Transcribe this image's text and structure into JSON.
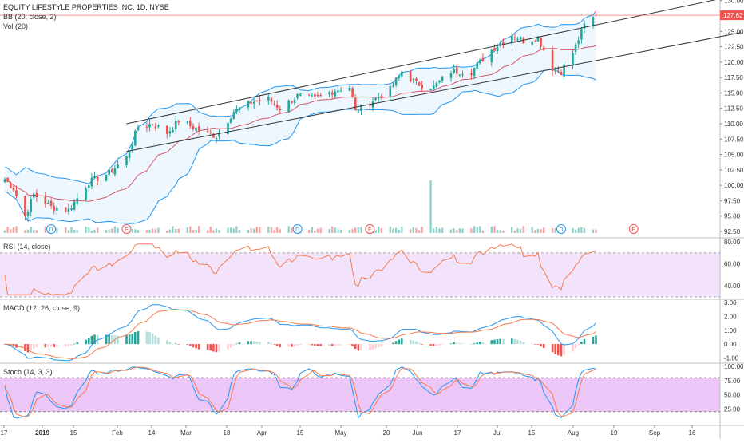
{
  "chart_data": {
    "type": "candlestick",
    "title": "EQUITY LIFESTYLE PROPERTIES INC, 1D, NYSE",
    "studies": {
      "bb": "BB (20, close, 2)",
      "vol": "Vol (20)",
      "rsi": "RSI (14, close)",
      "macd": "MACD (12, 26, close, 9)",
      "stoch": "Stoch (14, 3, 3)"
    },
    "last_price": "127.62",
    "price_ticks": [
      "130.00",
      "127.50",
      "125.00",
      "122.50",
      "120.00",
      "117.50",
      "115.00",
      "112.50",
      "110.00",
      "107.50",
      "105.00",
      "102.50",
      "100.00",
      "97.50",
      "95.00",
      "92.50"
    ],
    "rsi_ticks": [
      "80.00",
      "60.00",
      "40.00"
    ],
    "macd_ticks": [
      "3.00",
      "2.00",
      "1.00",
      "0.00",
      "-1.00"
    ],
    "stoch_ticks": [
      "100.00",
      "75.00",
      "50.00",
      "25.00"
    ],
    "x_ticks": [
      {
        "label": "17",
        "bold": false
      },
      {
        "label": "2019",
        "bold": true
      },
      {
        "label": "15",
        "bold": false
      },
      {
        "label": "Feb",
        "bold": false
      },
      {
        "label": "14",
        "bold": false
      },
      {
        "label": "Mar",
        "bold": false
      },
      {
        "label": "18",
        "bold": false
      },
      {
        "label": "Apr",
        "bold": false
      },
      {
        "label": "15",
        "bold": false
      },
      {
        "label": "May",
        "bold": false
      },
      {
        "label": "20",
        "bold": false
      },
      {
        "label": "Jun",
        "bold": false
      },
      {
        "label": "17",
        "bold": false
      },
      {
        "label": "Jul",
        "bold": false
      },
      {
        "label": "15",
        "bold": false
      },
      {
        "label": "Aug",
        "bold": false
      },
      {
        "label": "19",
        "bold": false
      },
      {
        "label": "Sep",
        "bold": false
      },
      {
        "label": "16",
        "bold": false
      }
    ],
    "events": [
      {
        "type": "D",
        "date": "2019-01-02"
      },
      {
        "type": "E",
        "date": "2019-01-28"
      },
      {
        "type": "D",
        "date": "2019-03-28"
      },
      {
        "type": "E",
        "date": "2019-04-22"
      },
      {
        "type": "D",
        "date": "2019-06-27"
      },
      {
        "type": "E",
        "date": "2019-07-22"
      }
    ],
    "channel_lines": [
      {
        "from": {
          "date": "2019-01-28",
          "price": 110.0
        },
        "to": {
          "date": "2019-08-28",
          "price": 131.0
        }
      },
      {
        "from": {
          "date": "2019-01-28",
          "price": 105.5
        },
        "to": {
          "date": "2019-08-28",
          "price": 124.8
        }
      }
    ],
    "hlines": {
      "rsi": [
        70,
        30
      ],
      "stoch": [
        80,
        20
      ]
    },
    "rsi_range": [
      30,
      80
    ],
    "macd_range": [
      -1.2,
      3.0
    ],
    "stoch_range": [
      0,
      100
    ],
    "ohlc_anchors": [
      {
        "date": "2018-12-17",
        "price": 101.0
      },
      {
        "date": "2018-12-20",
        "price": 99.5
      },
      {
        "date": "2018-12-24",
        "price": 95.0
      },
      {
        "date": "2018-12-27",
        "price": 98.5
      },
      {
        "date": "2019-01-02",
        "price": 96.5
      },
      {
        "date": "2019-01-08",
        "price": 96.0
      },
      {
        "date": "2019-01-15",
        "price": 100.5
      },
      {
        "date": "2019-01-22",
        "price": 102.0
      },
      {
        "date": "2019-01-28",
        "price": 104.5
      },
      {
        "date": "2019-02-01",
        "price": 109.5
      },
      {
        "date": "2019-02-06",
        "price": 110.0
      },
      {
        "date": "2019-02-11",
        "price": 108.5
      },
      {
        "date": "2019-02-15",
        "price": 110.5
      },
      {
        "date": "2019-02-22",
        "price": 109.0
      },
      {
        "date": "2019-02-28",
        "price": 108.0
      },
      {
        "date": "2019-03-06",
        "price": 112.0
      },
      {
        "date": "2019-03-12",
        "price": 113.5
      },
      {
        "date": "2019-03-18",
        "price": 114.0
      },
      {
        "date": "2019-03-22",
        "price": 112.5
      },
      {
        "date": "2019-03-28",
        "price": 114.5
      },
      {
        "date": "2019-04-03",
        "price": 114.0
      },
      {
        "date": "2019-04-10",
        "price": 115.5
      },
      {
        "date": "2019-04-15",
        "price": 116.0
      },
      {
        "date": "2019-04-17",
        "price": 112.0
      },
      {
        "date": "2019-04-22",
        "price": 113.5
      },
      {
        "date": "2019-04-29",
        "price": 115.5
      },
      {
        "date": "2019-05-03",
        "price": 118.5
      },
      {
        "date": "2019-05-08",
        "price": 116.5
      },
      {
        "date": "2019-05-14",
        "price": 116.0
      },
      {
        "date": "2019-05-20",
        "price": 118.5
      },
      {
        "date": "2019-05-27",
        "price": 118.5
      },
      {
        "date": "2019-06-03",
        "price": 122.0
      },
      {
        "date": "2019-06-10",
        "price": 124.5
      },
      {
        "date": "2019-06-14",
        "price": 123.5
      },
      {
        "date": "2019-06-19",
        "price": 124.0
      },
      {
        "date": "2019-06-24",
        "price": 119.0
      },
      {
        "date": "2019-06-27",
        "price": 118.5
      },
      {
        "date": "2019-07-01",
        "price": 121.5
      },
      {
        "date": "2019-07-05",
        "price": 126.0
      },
      {
        "date": "2019-07-09",
        "price": 127.62
      }
    ]
  }
}
